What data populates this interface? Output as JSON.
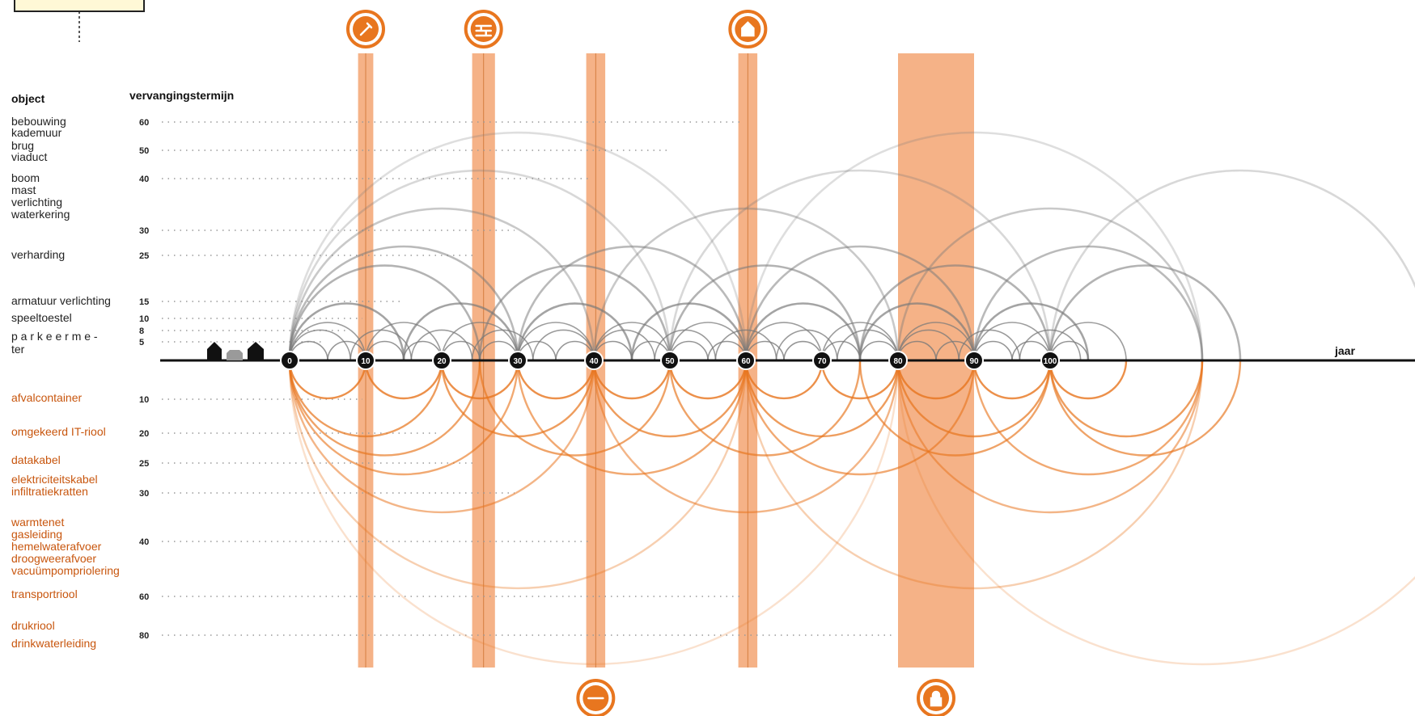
{
  "headers": {
    "object": "object",
    "term": "vervangingstermijn",
    "axis": "jaar"
  },
  "x_ticks": [
    0,
    10,
    20,
    30,
    40,
    50,
    60,
    70,
    80,
    90,
    100
  ],
  "colors": {
    "above": "#7a7a7a",
    "below": "#e8761f",
    "band": "#f3a472",
    "icon": "#e8761f"
  },
  "above_rows": [
    {
      "labels": [
        "bebouwing",
        "kademuur"
      ],
      "term": "60"
    },
    {
      "labels": [
        "brug",
        "viaduct"
      ],
      "term": "50"
    },
    {
      "labels": [
        "boom",
        "mast",
        "verlichting",
        "waterkering"
      ],
      "term": "40"
    },
    {
      "labels": [],
      "term": "30"
    },
    {
      "labels": [
        "verharding"
      ],
      "term": "25"
    },
    {
      "labels": [
        "armatuur verlichting"
      ],
      "term": "15"
    },
    {
      "labels": [
        "speeltoestel"
      ],
      "term": "10"
    },
    {
      "labels": [],
      "term": "8"
    },
    {
      "labels": [
        "p a r k e e r m e -",
        "ter"
      ],
      "term": "5"
    }
  ],
  "below_rows": [
    {
      "labels": [
        "afvalcontainer"
      ],
      "term": "10"
    },
    {
      "labels": [
        "omgekeerd IT-riool"
      ],
      "term": "20"
    },
    {
      "labels": [
        "datakabel"
      ],
      "term": "25"
    },
    {
      "labels": [
        "elektriciteitskabel",
        "infiltratiekratten"
      ],
      "term": "30"
    },
    {
      "labels": [
        "warmtenet",
        "gasleiding",
        "hemelwaterafvoer",
        "droogweerafvoer",
        "vacuümpompriolering"
      ],
      "term": "40"
    },
    {
      "labels": [
        "transportriool"
      ],
      "term": "60"
    },
    {
      "labels": [
        "drukriool",
        "drinkwaterleiding"
      ],
      "term": "80"
    }
  ],
  "bands": [
    {
      "from": 9,
      "to": 11,
      "icon": "tool-icon",
      "icon_side": "top"
    },
    {
      "from": 24,
      "to": 27,
      "icon": "brick-wall-icon",
      "icon_side": "top"
    },
    {
      "from": 39,
      "to": 41.5,
      "icon": "pipe-link-icon",
      "icon_side": "bottom"
    },
    {
      "from": 59,
      "to": 61.5,
      "icon": "house-icon",
      "icon_side": "top"
    },
    {
      "from": 80,
      "to": 90,
      "icon": "lock-icon",
      "icon_side": "bottom"
    }
  ]
}
